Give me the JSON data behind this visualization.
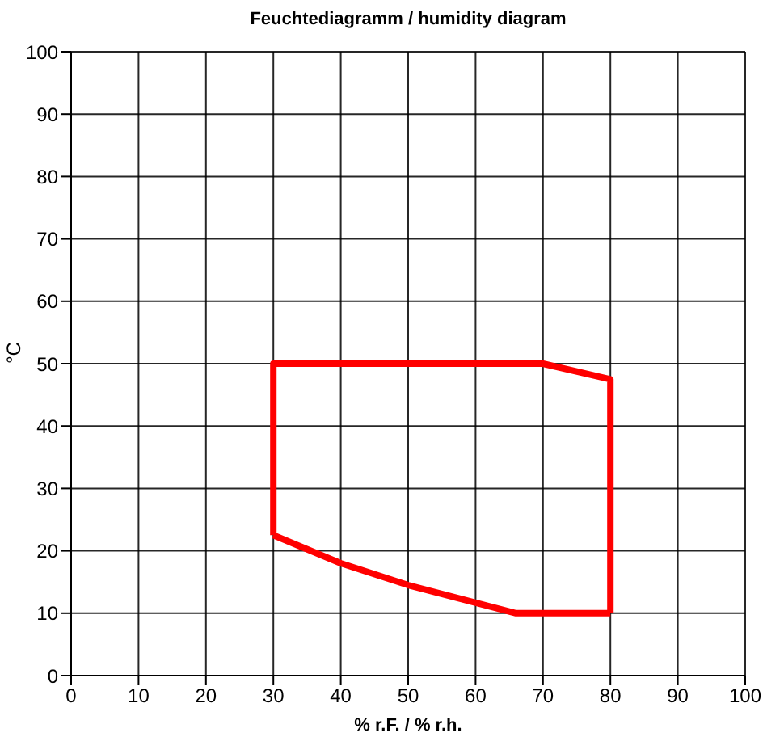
{
  "chart_data": {
    "type": "line",
    "title": "Feuchtediagramm  /  humidity diagram",
    "xlabel": "% r.F.  /  % r.h.",
    "ylabel": "°C",
    "series": [
      {
        "color": "#ff0000",
        "x": [
          30,
          30,
          70,
          80,
          80
        ],
        "values": [
          22.5,
          50,
          50,
          47.5,
          10
        ]
      },
      {
        "color": "#ff0000",
        "x": [
          30,
          40,
          50,
          66,
          80
        ],
        "values": [
          22.5,
          18,
          14.5,
          10,
          10
        ]
      }
    ],
    "xlim": [
      0,
      100
    ],
    "xticks": [
      0,
      10,
      20,
      30,
      40,
      50,
      60,
      70,
      80,
      90,
      100
    ],
    "ylim": [
      0,
      100
    ],
    "yticks": [
      0,
      10,
      20,
      30,
      40,
      50,
      60,
      70,
      80,
      90,
      100
    ],
    "grid": true,
    "marker": "none",
    "line_style": "solid"
  }
}
